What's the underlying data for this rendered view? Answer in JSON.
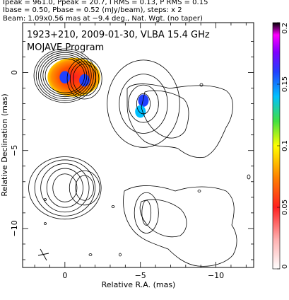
{
  "header": {
    "line1": "Ipeak = 961.0, Ppeak = 20.7, I RMS = 0.13, P RMS = 0.15",
    "line2": "Ibase = 0.50, Pbase = 0.52 (mJy/beam), steps: x 2",
    "line3": "Beam: 1.09x0.56 mas at −9.4 deg., Nat. Wgt. (no taper)"
  },
  "chart_data": {
    "type": "contour",
    "title": "1923+210, 2009-01-30, VLBA 15.4 GHz",
    "subtitle": "MOJAVE Program",
    "xlabel": "Relative R.A. (mas)",
    "ylabel": "Relative Declination (mas)",
    "xlim": [
      2.8,
      -12.5
    ],
    "ylim": [
      -12.5,
      3.2
    ],
    "x_ticks": [
      0,
      -5,
      -10
    ],
    "x_tick_labels": [
      "0",
      "−5",
      "−10"
    ],
    "y_ticks": [
      0,
      -5,
      -10
    ],
    "y_tick_labels": [
      "0",
      "−5",
      "−10"
    ],
    "colorbar": {
      "min": 0,
      "max": 0.2,
      "ticks": [
        0,
        0.05,
        0.1,
        0.15,
        0.2
      ],
      "tick_labels": [
        "0",
        "0.05",
        "0.1",
        "0.15",
        "0.2"
      ],
      "colors": [
        "#ffffff",
        "#ffb0b0",
        "#ff2020",
        "#ff8000",
        "#ffff00",
        "#40e040",
        "#00c0ff",
        "#2040ff",
        "#8000ff",
        "#ff00ff",
        "#000000"
      ]
    },
    "panels": [
      {
        "name": "upper",
        "components": [
          {
            "x": 0.0,
            "y": -0.2,
            "contours": [
              [
                1.3,
                1.1
              ],
              [
                1.45,
                1.22
              ],
              [
                1.6,
                1.35
              ],
              [
                1.75,
                1.48
              ],
              [
                1.9,
                1.6
              ],
              [
                2.05,
                1.72
              ]
            ]
          },
          {
            "x": -1.3,
            "y": -0.4,
            "contours": [
              [
                0.75,
                0.95
              ],
              [
                0.95,
                1.1
              ],
              [
                1.15,
                1.3
              ]
            ]
          },
          {
            "x": -5.2,
            "y": -2.0,
            "contours": [
              [
                0.45,
                0.65
              ],
              [
                1.0,
                1.2
              ],
              [
                1.6,
                1.9
              ],
              [
                2.4,
                2.8
              ]
            ]
          }
        ],
        "polarization_patches": [
          {
            "x": 0.0,
            "y": -0.3,
            "value": 0.15
          },
          {
            "x": -1.3,
            "y": -0.5,
            "value": 0.13
          },
          {
            "x": -5.2,
            "y": -1.8,
            "value": 0.15
          },
          {
            "x": -5.0,
            "y": -2.5,
            "value": 0.12
          }
        ]
      },
      {
        "name": "lower",
        "components": [
          {
            "x": 0.0,
            "y": -7.4,
            "contours": [
              [
                0.8,
                0.9
              ],
              [
                1.2,
                1.25
              ],
              [
                1.6,
                1.55
              ],
              [
                2.0,
                1.8
              ],
              [
                2.4,
                2.0
              ]
            ]
          },
          {
            "x": -1.3,
            "y": -7.4,
            "contours": [
              [
                0.6,
                0.8
              ],
              [
                1.0,
                1.1
              ]
            ]
          },
          {
            "x": -5.4,
            "y": -9.0,
            "contours": [
              [
                0.3,
                0.8
              ],
              [
                0.8,
                1.3
              ]
            ]
          }
        ]
      }
    ]
  }
}
